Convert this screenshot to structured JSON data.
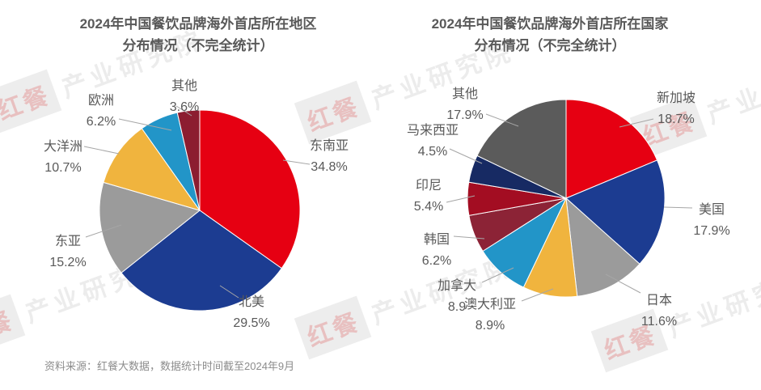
{
  "page": {
    "source_note": "资料来源：红餐大数据，数据统计时间截至2024年9月",
    "watermark": {
      "logo": "红餐",
      "text": "产业研究院"
    }
  },
  "chart_data": [
    {
      "type": "pie",
      "title_lines": [
        "2024年中国餐饮品牌海外首店所在地区",
        "分布情况（不完全统计）"
      ],
      "unit": "%",
      "grid": false,
      "legend_position": "outside-callout-labels",
      "slices": [
        {
          "key": "southeast-asia",
          "label": "东南亚",
          "value": 34.8,
          "pct": "34.8%",
          "color": "#e60012"
        },
        {
          "key": "north-america",
          "label": "北美",
          "value": 29.5,
          "pct": "29.5%",
          "color": "#1c3c91"
        },
        {
          "key": "east-asia",
          "label": "东亚",
          "value": 15.2,
          "pct": "15.2%",
          "color": "#9b9b9b"
        },
        {
          "key": "oceania",
          "label": "大洋洲",
          "value": 10.7,
          "pct": "10.7%",
          "color": "#f0b43e"
        },
        {
          "key": "europe",
          "label": "欧洲",
          "value": 6.2,
          "pct": "6.2%",
          "color": "#2295c8"
        },
        {
          "key": "other",
          "label": "其他",
          "value": 3.6,
          "pct": "3.6%",
          "color": "#8c1d30"
        }
      ]
    },
    {
      "type": "pie",
      "title_lines": [
        "2024年中国餐饮品牌海外首店所在国家",
        "分布情况（不完全统计）"
      ],
      "unit": "%",
      "grid": false,
      "legend_position": "outside-callout-labels",
      "slices": [
        {
          "key": "singapore",
          "label": "新加坡",
          "value": 18.7,
          "pct": "18.7%",
          "color": "#e60012"
        },
        {
          "key": "usa",
          "label": "美国",
          "value": 17.9,
          "pct": "17.9%",
          "color": "#1c3c91"
        },
        {
          "key": "japan",
          "label": "日本",
          "value": 11.6,
          "pct": "11.6%",
          "color": "#9b9b9b"
        },
        {
          "key": "australia",
          "label": "澳大利亚",
          "value": 8.9,
          "pct": "8.9%",
          "color": "#f0b43e"
        },
        {
          "key": "canada",
          "label": "加拿大",
          "value": 8.9,
          "pct": "8.9",
          "color": "#2295c8"
        },
        {
          "key": "south-korea",
          "label": "韩国",
          "value": 6.2,
          "pct": "6.2%",
          "color": "#8c2336"
        },
        {
          "key": "indonesia",
          "label": "印尼",
          "value": 5.4,
          "pct": "5.4%",
          "color": "#a30d22"
        },
        {
          "key": "malaysia",
          "label": "马来西亚",
          "value": 4.5,
          "pct": "4.5%",
          "color": "#172a63"
        },
        {
          "key": "other",
          "label": "其他",
          "value": 17.9,
          "pct": "17.9%",
          "color": "#5b5b5b"
        }
      ]
    }
  ]
}
